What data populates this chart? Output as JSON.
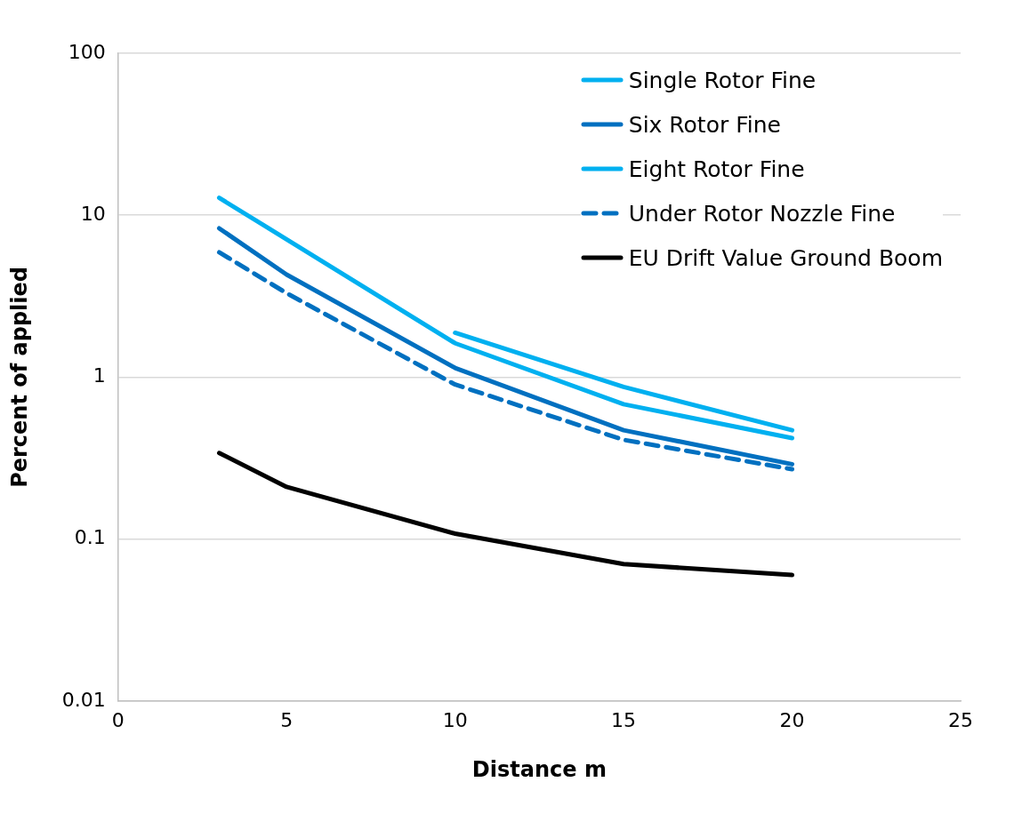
{
  "chart_data": {
    "type": "line",
    "xlabel": "Distance m",
    "ylabel": "Percent of applied",
    "x": [
      3,
      5,
      10,
      15,
      20
    ],
    "series": [
      {
        "name": "Single Rotor Fine",
        "color": "#00b0f0",
        "line_style": "solid",
        "values": [
          null,
          null,
          1.88,
          0.87,
          0.47
        ]
      },
      {
        "name": "Six Rotor Fine",
        "color": "#0070c0",
        "line_style": "solid",
        "values": [
          8.3,
          4.3,
          1.14,
          0.47,
          0.29
        ]
      },
      {
        "name": "Eight Rotor Fine",
        "color": "#00b0f0",
        "line_style": "solid",
        "values": [
          12.8,
          7.1,
          1.62,
          0.68,
          0.42
        ]
      },
      {
        "name": "Under Rotor Nozzle Fine",
        "color": "#0070c0",
        "line_style": "dashed",
        "values": [
          5.9,
          3.3,
          0.9,
          0.41,
          0.27
        ]
      },
      {
        "name": "EU Drift Value Ground Boom",
        "color": "#000000",
        "line_style": "solid",
        "values": [
          0.34,
          0.21,
          0.108,
          0.07,
          0.06
        ]
      }
    ],
    "xlim": [
      0,
      25
    ],
    "xticks": [
      0,
      5,
      10,
      15,
      20,
      25
    ],
    "ylim": [
      0.01,
      100
    ],
    "yticks": [
      0.01,
      0.1,
      1,
      10,
      100
    ],
    "log": "y",
    "grid": "y",
    "legend": "top right",
    "marker": "none"
  }
}
